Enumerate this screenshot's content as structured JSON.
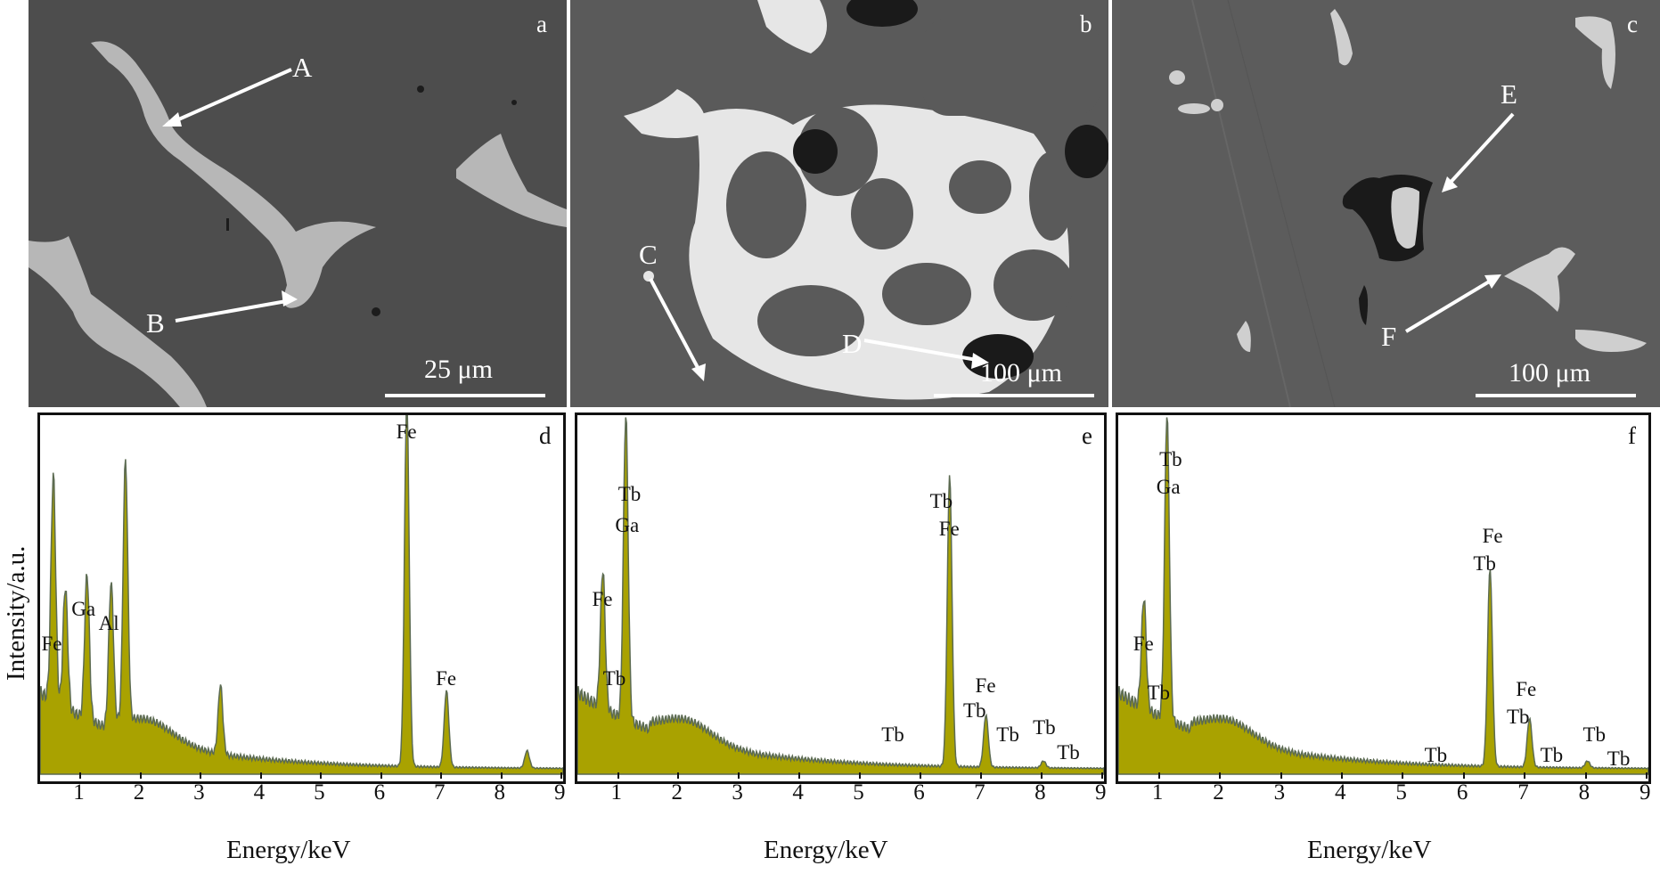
{
  "sem_panels": [
    {
      "id": "a",
      "points": [
        "A",
        "B"
      ],
      "scale_bar": "25 μm"
    },
    {
      "id": "b",
      "points": [
        "C",
        "D"
      ],
      "scale_bar": "100 μm"
    },
    {
      "id": "c",
      "points": [
        "E",
        "F"
      ],
      "scale_bar": "100 μm"
    }
  ],
  "axis": {
    "xlabel": "Energy/keV",
    "ylabel": "Intensity/a.u.",
    "ticks": [
      "1",
      "2",
      "3",
      "4",
      "5",
      "6",
      "7",
      "8",
      "9"
    ]
  },
  "colors": {
    "fill": "#a9a200",
    "edge": "#5c6b52"
  },
  "chart_data": [
    {
      "panel": "d",
      "type": "area",
      "xlim": [
        0.3,
        9
      ],
      "x_ticks": [
        1,
        2,
        3,
        4,
        5,
        6,
        7,
        8,
        9
      ],
      "peaks": [
        {
          "x": 0.52,
          "h": 0.65
        },
        {
          "x": 0.72,
          "h": 0.35
        },
        {
          "x": 1.08,
          "h": 0.42
        },
        {
          "x": 1.48,
          "h": 0.42
        },
        {
          "x": 1.72,
          "h": 0.75
        },
        {
          "x": 3.3,
          "h": 0.2
        },
        {
          "x": 6.4,
          "h": 1.05
        },
        {
          "x": 7.06,
          "h": 0.22
        },
        {
          "x": 8.4,
          "h": 0.05
        }
      ],
      "labels": [
        {
          "text": "Fe",
          "x": 0.5,
          "y": 0.37
        },
        {
          "text": "Ga",
          "x": 1.0,
          "y": 0.47
        },
        {
          "text": "Al",
          "x": 1.45,
          "y": 0.43
        },
        {
          "text": "Fe",
          "x": 6.4,
          "y": 0.98
        },
        {
          "text": "Fe",
          "x": 7.06,
          "y": 0.27
        }
      ]
    },
    {
      "panel": "e",
      "type": "area",
      "xlim": [
        0.3,
        9
      ],
      "x_ticks": [
        1,
        2,
        3,
        4,
        5,
        6,
        7,
        8,
        9
      ],
      "peaks": [
        {
          "x": 0.72,
          "h": 0.4
        },
        {
          "x": 1.1,
          "h": 0.88
        },
        {
          "x": 6.45,
          "h": 0.84
        },
        {
          "x": 7.05,
          "h": 0.15
        },
        {
          "x": 8.0,
          "h": 0.02
        }
      ],
      "labels": [
        {
          "text": "Fe",
          "x": 0.72,
          "y": 0.5
        },
        {
          "text": "Tb",
          "x": 1.15,
          "y": 0.8
        },
        {
          "text": "Ga",
          "x": 1.1,
          "y": 0.71
        },
        {
          "text": "Tb",
          "x": 0.9,
          "y": 0.27
        },
        {
          "text": "Tb",
          "x": 6.3,
          "y": 0.78
        },
        {
          "text": "Fe",
          "x": 6.45,
          "y": 0.7
        },
        {
          "text": "Tb",
          "x": 5.5,
          "y": 0.11
        },
        {
          "text": "Fe",
          "x": 7.05,
          "y": 0.25
        },
        {
          "text": "Tb",
          "x": 6.85,
          "y": 0.18
        },
        {
          "text": "Tb",
          "x": 7.4,
          "y": 0.11
        },
        {
          "text": "Tb",
          "x": 8.0,
          "y": 0.13
        },
        {
          "text": "Tb",
          "x": 8.4,
          "y": 0.06
        }
      ]
    },
    {
      "panel": "f",
      "type": "area",
      "xlim": [
        0.3,
        9
      ],
      "x_ticks": [
        1,
        2,
        3,
        4,
        5,
        6,
        7,
        8,
        9
      ],
      "peaks": [
        {
          "x": 0.72,
          "h": 0.32
        },
        {
          "x": 1.1,
          "h": 0.88
        },
        {
          "x": 6.4,
          "h": 0.57
        },
        {
          "x": 7.05,
          "h": 0.14
        },
        {
          "x": 8.0,
          "h": 0.02
        }
      ],
      "labels": [
        {
          "text": "Tb",
          "x": 1.15,
          "y": 0.9
        },
        {
          "text": "Ga",
          "x": 1.1,
          "y": 0.82
        },
        {
          "text": "Fe",
          "x": 0.72,
          "y": 0.37
        },
        {
          "text": "Tb",
          "x": 0.95,
          "y": 0.23
        },
        {
          "text": "Fe",
          "x": 6.45,
          "y": 0.68
        },
        {
          "text": "Tb",
          "x": 6.3,
          "y": 0.6
        },
        {
          "text": "Tb",
          "x": 5.5,
          "y": 0.05
        },
        {
          "text": "Fe",
          "x": 7.0,
          "y": 0.24
        },
        {
          "text": "Tb",
          "x": 6.85,
          "y": 0.16
        },
        {
          "text": "Tb",
          "x": 7.4,
          "y": 0.05
        },
        {
          "text": "Tb",
          "x": 8.1,
          "y": 0.11
        },
        {
          "text": "Tb",
          "x": 8.5,
          "y": 0.04
        }
      ]
    }
  ]
}
